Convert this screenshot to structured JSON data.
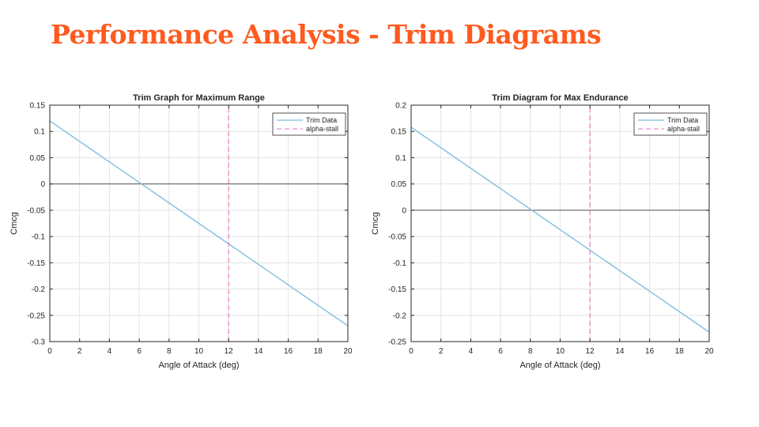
{
  "slide": {
    "title": "Performance Analysis - Trim Diagrams"
  },
  "colors": {
    "title": "#ff5a1f",
    "trim_line": "#7fbfdc",
    "stall_line": "#e58fcf",
    "zero_line": "#555555",
    "grid": "#e3e3e3"
  },
  "chart_data": [
    {
      "type": "line",
      "title": "Trim Graph for Maximum Range",
      "xlabel": "Angle of Attack (deg)",
      "ylabel": "Cmcg",
      "xlim": [
        0,
        20
      ],
      "ylim": [
        -0.3,
        0.15
      ],
      "xticks": [
        0,
        2,
        4,
        6,
        8,
        10,
        12,
        14,
        16,
        18,
        20
      ],
      "yticks": [
        0.15,
        0.1,
        0.05,
        0,
        -0.05,
        -0.1,
        -0.15,
        -0.2,
        -0.25,
        -0.3
      ],
      "ytick_labels": [
        "0.15",
        "0.1",
        "0.05",
        "0",
        "-0.05",
        "-0.1",
        "-0.15",
        "-0.2",
        "-0.25",
        "-0.3"
      ],
      "grid": true,
      "legend_position": "top-right",
      "series": [
        {
          "name": "Trim Data",
          "style": "solid",
          "color": "#7fbfdc",
          "x": [
            0,
            20
          ],
          "y": [
            0.12,
            -0.27
          ]
        },
        {
          "name": "alpha-stall",
          "style": "dashed",
          "color": "#e58fcf",
          "x": [
            12,
            12
          ],
          "y": [
            -0.3,
            0.15
          ]
        }
      ]
    },
    {
      "type": "line",
      "title": "Trim Diagram for Max Endurance",
      "xlabel": "Angle of Attack (deg)",
      "ylabel": "Cmcg",
      "xlim": [
        0,
        20
      ],
      "ylim": [
        -0.25,
        0.2
      ],
      "xticks": [
        0,
        2,
        4,
        6,
        8,
        10,
        12,
        14,
        16,
        18,
        20
      ],
      "yticks": [
        0.2,
        0.15,
        0.1,
        0.05,
        0,
        -0.05,
        -0.1,
        -0.15,
        -0.2,
        -0.25
      ],
      "ytick_labels": [
        "0.2",
        "0.15",
        "0.1",
        "0.05",
        "0",
        "-0.05",
        "-0.1",
        "-0.15",
        "-0.2",
        "-0.25"
      ],
      "grid": true,
      "legend_position": "top-right",
      "series": [
        {
          "name": "Trim Data",
          "style": "solid",
          "color": "#7fbfdc",
          "x": [
            0,
            20
          ],
          "y": [
            0.158,
            -0.232
          ]
        },
        {
          "name": "alpha-stall",
          "style": "dashed",
          "color": "#e58fcf",
          "x": [
            12,
            12
          ],
          "y": [
            -0.25,
            0.2
          ]
        }
      ]
    }
  ]
}
